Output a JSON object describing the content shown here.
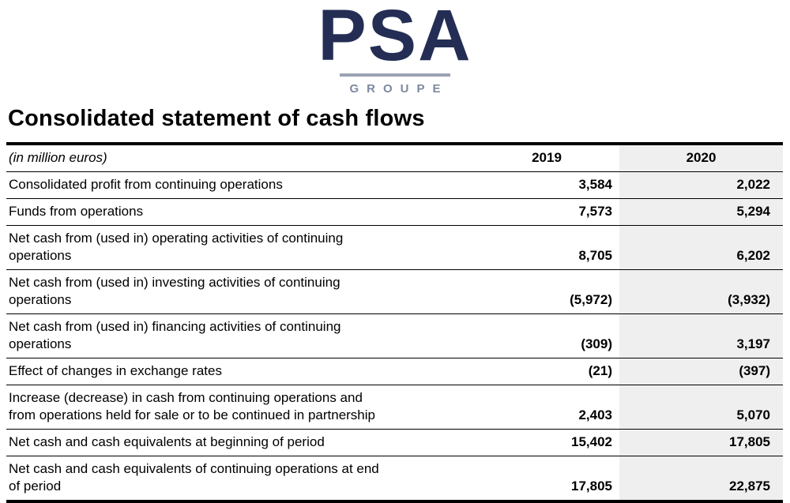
{
  "logo": {
    "brand": "PSA",
    "subtitle": "GROUPE",
    "brand_color": "#242e55",
    "subtitle_color": "#7e88a0",
    "divider_color": "#9aa3b2"
  },
  "page": {
    "title": "Consolidated statement of cash flows"
  },
  "table": {
    "unit_label": "(in million euros)",
    "columns": {
      "col1": "2019",
      "col2": "2020"
    },
    "highlight_color": "#efefef",
    "rows": [
      {
        "label": "Consolidated profit from continuing operations",
        "y2019": "3,584",
        "y2020": "2,022"
      },
      {
        "label": "Funds from operations",
        "y2019": "7,573",
        "y2020": "5,294"
      },
      {
        "label": "Net cash from (used in) operating activities of continuing\noperations",
        "y2019": "8,705",
        "y2020": "6,202"
      },
      {
        "label": "Net cash from (used in) investing activities of continuing\noperations",
        "y2019": "(5,972)",
        "y2020": "(3,932)"
      },
      {
        "label": "Net cash from (used in) financing activities of continuing\noperations",
        "y2019": "(309)",
        "y2020": "3,197"
      },
      {
        "label": "Effect of changes in exchange rates",
        "y2019": "(21)",
        "y2020": "(397)"
      },
      {
        "label": "Increase (decrease) in cash from continuing operations and\nfrom operations held for sale or to be continued in partnership",
        "y2019": "2,403",
        "y2020": "5,070"
      },
      {
        "label": "Net cash and cash equivalents at beginning of period",
        "y2019": "15,402",
        "y2020": "17,805"
      },
      {
        "label": "Net cash and cash equivalents of continuing operations at end\nof period",
        "y2019": "17,805",
        "y2020": "22,875"
      }
    ]
  }
}
